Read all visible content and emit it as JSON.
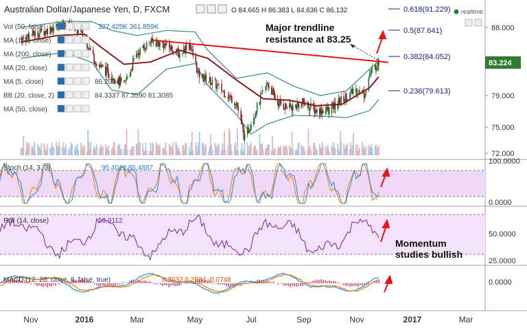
{
  "header": {
    "symbol_title": "Australian Dollar/Japanese Yen, D, FXCM",
    "ohlc": "O 84.665 H 86.383 L 84.636 C 86.132",
    "realtime_label": "realtime"
  },
  "indicators": [
    {
      "id": "vol",
      "label": "Vol (50, false)",
      "values": "327.425K 361.859K"
    },
    {
      "id": "ma150",
      "label": "MA (150, close)",
      "values": ""
    },
    {
      "id": "ma200",
      "label": "MA (200, close)",
      "values": ""
    },
    {
      "id": "ma20",
      "label": "MA (20, close)",
      "values": ""
    },
    {
      "id": "ma5",
      "label": "MA (5, close)",
      "values": "86.2004"
    },
    {
      "id": "bb",
      "label": "BB (20, close, 2)",
      "values": "84.3337 87.3590 81.3085"
    },
    {
      "id": "ma50",
      "label": "MA (50, close)",
      "values": ""
    }
  ],
  "subpanes": {
    "stoch": {
      "label": "Stoch (14, 3, 3)",
      "values": "95.4019 85.4887"
    },
    "rsi": {
      "label": "RSI (14, close)",
      "values": "59.9112"
    },
    "macd": {
      "label": "MACD (12, 26, close, 9, false, true)",
      "values": "0.3632 0.2884 -0.0748"
    }
  },
  "annotations": {
    "trendline_text": [
      "Major trendline",
      "resistance at 83.25"
    ],
    "momentum_text": [
      "Momentum",
      "studies bullish"
    ]
  },
  "colors": {
    "candle_up": "#1e7b34",
    "candle_down": "#8b1a1a",
    "ma": "#8b1a1a",
    "bollinger": "#2e8b8b",
    "trendline": "#e8121a",
    "fib": "#1a237e",
    "price_tag": "#2e7d32",
    "stoch_k": "#1e88e5",
    "stoch_d": "#f57c00",
    "rsi": "#7b1fa2",
    "annotation_arrow": "#e8121a"
  },
  "chart_data": {
    "type": "candlestick",
    "title": "Australian Dollar/Japanese Yen, D, FXCM",
    "current_price": 83.224,
    "price_axis": {
      "ticks": [
        "88.000",
        "83.224",
        "79.000",
        "75.000",
        "72.000"
      ],
      "range": [
        71.5,
        89.0
      ]
    },
    "time_axis": [
      "Nov",
      "2016",
      "Mar",
      "May",
      "Jul",
      "Sep",
      "Nov",
      "2017",
      "Mar"
    ],
    "fibonacci": [
      {
        "label": "0.618(91.229)",
        "value": 91.229
      },
      {
        "label": "0.5(87.641)",
        "value": 87.641
      },
      {
        "label": "0.382(84.052)",
        "value": 84.052
      },
      {
        "label": "0.236(79.613)",
        "value": 79.613
      }
    ],
    "trendline": {
      "from": {
        "date": "2016-03",
        "price": 86.3
      },
      "to": {
        "date": "2016-11",
        "price": 83.25
      }
    },
    "price_series": [
      {
        "d": "2015-10-20",
        "p": 86.4
      },
      {
        "d": "2015-11-01",
        "p": 87.0
      },
      {
        "d": "2015-11-15",
        "p": 87.4
      },
      {
        "d": "2015-12-01",
        "p": 88.3
      },
      {
        "d": "2015-12-15",
        "p": 88.6
      },
      {
        "d": "2016-01-01",
        "p": 86.7
      },
      {
        "d": "2016-01-15",
        "p": 83.0
      },
      {
        "d": "2016-02-01",
        "p": 81.6
      },
      {
        "d": "2016-02-15",
        "p": 80.3
      },
      {
        "d": "2016-03-01",
        "p": 84.5
      },
      {
        "d": "2016-03-15",
        "p": 86.1
      },
      {
        "d": "2016-04-01",
        "p": 85.6
      },
      {
        "d": "2016-04-15",
        "p": 84.3
      },
      {
        "d": "2016-04-25",
        "p": 85.9
      },
      {
        "d": "2016-05-05",
        "p": 81.6
      },
      {
        "d": "2016-05-20",
        "p": 80.7
      },
      {
        "d": "2016-06-01",
        "p": 79.5
      },
      {
        "d": "2016-06-15",
        "p": 78.1
      },
      {
        "d": "2016-06-24",
        "p": 73.6
      },
      {
        "d": "2016-07-05",
        "p": 76.8
      },
      {
        "d": "2016-07-20",
        "p": 80.6
      },
      {
        "d": "2016-08-01",
        "p": 78.1
      },
      {
        "d": "2016-08-15",
        "p": 77.4
      },
      {
        "d": "2016-09-01",
        "p": 78.1
      },
      {
        "d": "2016-09-15",
        "p": 77.1
      },
      {
        "d": "2016-10-01",
        "p": 77.2
      },
      {
        "d": "2016-10-15",
        "p": 78.5
      },
      {
        "d": "2016-11-01",
        "p": 79.8
      },
      {
        "d": "2016-11-09",
        "p": 79.2
      },
      {
        "d": "2016-11-15",
        "p": 81.7
      },
      {
        "d": "2016-11-25",
        "p": 83.2
      }
    ],
    "ma_series": [
      {
        "d": "2015-10-20",
        "p": 86.0
      },
      {
        "d": "2015-12-01",
        "p": 86.9
      },
      {
        "d": "2016-01-01",
        "p": 87.1
      },
      {
        "d": "2016-01-20",
        "p": 85.3
      },
      {
        "d": "2016-02-15",
        "p": 83.0
      },
      {
        "d": "2016-03-15",
        "p": 83.3
      },
      {
        "d": "2016-04-15",
        "p": 84.9
      },
      {
        "d": "2016-05-15",
        "p": 83.8
      },
      {
        "d": "2016-06-15",
        "p": 81.0
      },
      {
        "d": "2016-07-15",
        "p": 78.6
      },
      {
        "d": "2016-08-15",
        "p": 78.4
      },
      {
        "d": "2016-09-15",
        "p": 77.7
      },
      {
        "d": "2016-10-15",
        "p": 77.9
      },
      {
        "d": "2016-11-15",
        "p": 80.0
      },
      {
        "d": "2016-11-25",
        "p": 81.4
      }
    ],
    "bb_upper": [
      {
        "d": "2015-10-20",
        "p": 88.0
      },
      {
        "d": "2015-12-10",
        "p": 89.1
      },
      {
        "d": "2016-01-10",
        "p": 89.0
      },
      {
        "d": "2016-02-01",
        "p": 87.6
      },
      {
        "d": "2016-03-01",
        "p": 86.9
      },
      {
        "d": "2016-04-01",
        "p": 87.6
      },
      {
        "d": "2016-05-01",
        "p": 87.4
      },
      {
        "d": "2016-05-15",
        "p": 84.9
      },
      {
        "d": "2016-06-15",
        "p": 81.2
      },
      {
        "d": "2016-07-20",
        "p": 81.9
      },
      {
        "d": "2016-08-20",
        "p": 80.2
      },
      {
        "d": "2016-09-20",
        "p": 79.0
      },
      {
        "d": "2016-10-20",
        "p": 79.6
      },
      {
        "d": "2016-11-15",
        "p": 82.4
      },
      {
        "d": "2016-11-25",
        "p": 83.4
      }
    ],
    "bb_lower": [
      {
        "d": "2015-10-20",
        "p": 83.8
      },
      {
        "d": "2015-12-10",
        "p": 84.6
      },
      {
        "d": "2016-01-10",
        "p": 83.2
      },
      {
        "d": "2016-02-01",
        "p": 79.7
      },
      {
        "d": "2016-03-01",
        "p": 79.1
      },
      {
        "d": "2016-04-01",
        "p": 82.4
      },
      {
        "d": "2016-05-01",
        "p": 83.1
      },
      {
        "d": "2016-05-15",
        "p": 80.3
      },
      {
        "d": "2016-06-15",
        "p": 76.6
      },
      {
        "d": "2016-07-01",
        "p": 74.2
      },
      {
        "d": "2016-07-20",
        "p": 75.4
      },
      {
        "d": "2016-08-20",
        "p": 76.5
      },
      {
        "d": "2016-09-20",
        "p": 76.4
      },
      {
        "d": "2016-10-20",
        "p": 76.2
      },
      {
        "d": "2016-11-15",
        "p": 77.1
      },
      {
        "d": "2016-11-25",
        "p": 78.5
      }
    ],
    "stoch_axis": [
      "100.0000",
      "0.0000"
    ],
    "rsi_axis": [
      "50.0000",
      "25.0000"
    ],
    "macd_axis": [
      "0.0000"
    ]
  }
}
